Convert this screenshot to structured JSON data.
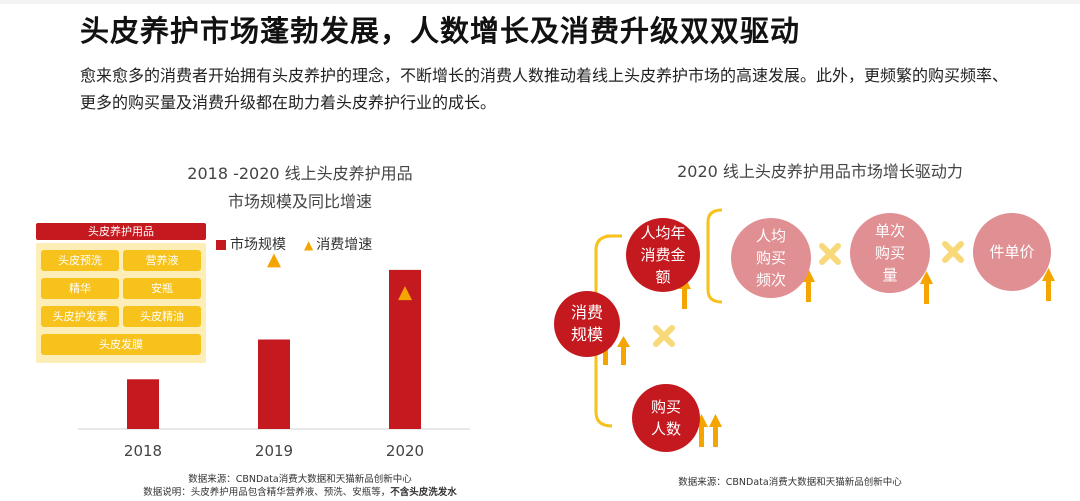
{
  "title": "头皮养护市场蓬勃发展，人数增长及消费升级双双驱动",
  "intro": "愈来愈多的消费者开始拥有头皮养护的理念，不断增长的消费人数推动着线上头皮养护市场的高速发展。此外，更频繁的购买频率、更多的购买量及消费升级都在助力着头皮养护行业的成长。",
  "colors": {
    "accent_red": "#c41a1f",
    "accent_yellow": "#f6c21b",
    "arrow_yellow": "#f5a500"
  },
  "left_chart": {
    "title_line1": "2018 -2020 线上头皮养护用品",
    "title_line2": "市场规模及同比增速",
    "products": {
      "header": "头皮养护用品",
      "items": [
        "头皮预洗",
        "营养液",
        "精华",
        "安瓶",
        "头皮护发素",
        "头皮精油",
        "头皮发膜"
      ]
    },
    "legend": {
      "bar": "市场规模",
      "growth": "消费增速"
    },
    "source_line1": "数据来源：CBNData消费大数据和天猫新品创新中心",
    "source_line2_prefix": "数据说明：头皮养护用品包含精华营养液、预洗、安瓶等，",
    "source_line2_bold": "不含头皮洗发水"
  },
  "chart_data": {
    "type": "bar",
    "categories": [
      "2018",
      "2019",
      "2020"
    ],
    "series": [
      {
        "name": "市场规模",
        "values": [
          1.0,
          1.8,
          3.2
        ]
      },
      {
        "name": "消费增速",
        "values": [
          null,
          1.0,
          0.78
        ]
      }
    ],
    "title": "2018 -2020 线上头皮养护用品 市场规模及同比增速",
    "grid": false,
    "legend_position": "top-left",
    "ylim": [
      0,
      3.6
    ]
  },
  "right_chart": {
    "title": "2020 线上头皮养护用品市场增长驱动力",
    "nodes": {
      "scale": "消费规模",
      "spend": "人均年消费金额",
      "freq": "人均购买频次",
      "qty": "单次购买量",
      "price": "件单价",
      "buyers": "购买人数"
    },
    "source": "数据来源：CBNData消费大数据和天猫新品创新中心"
  }
}
